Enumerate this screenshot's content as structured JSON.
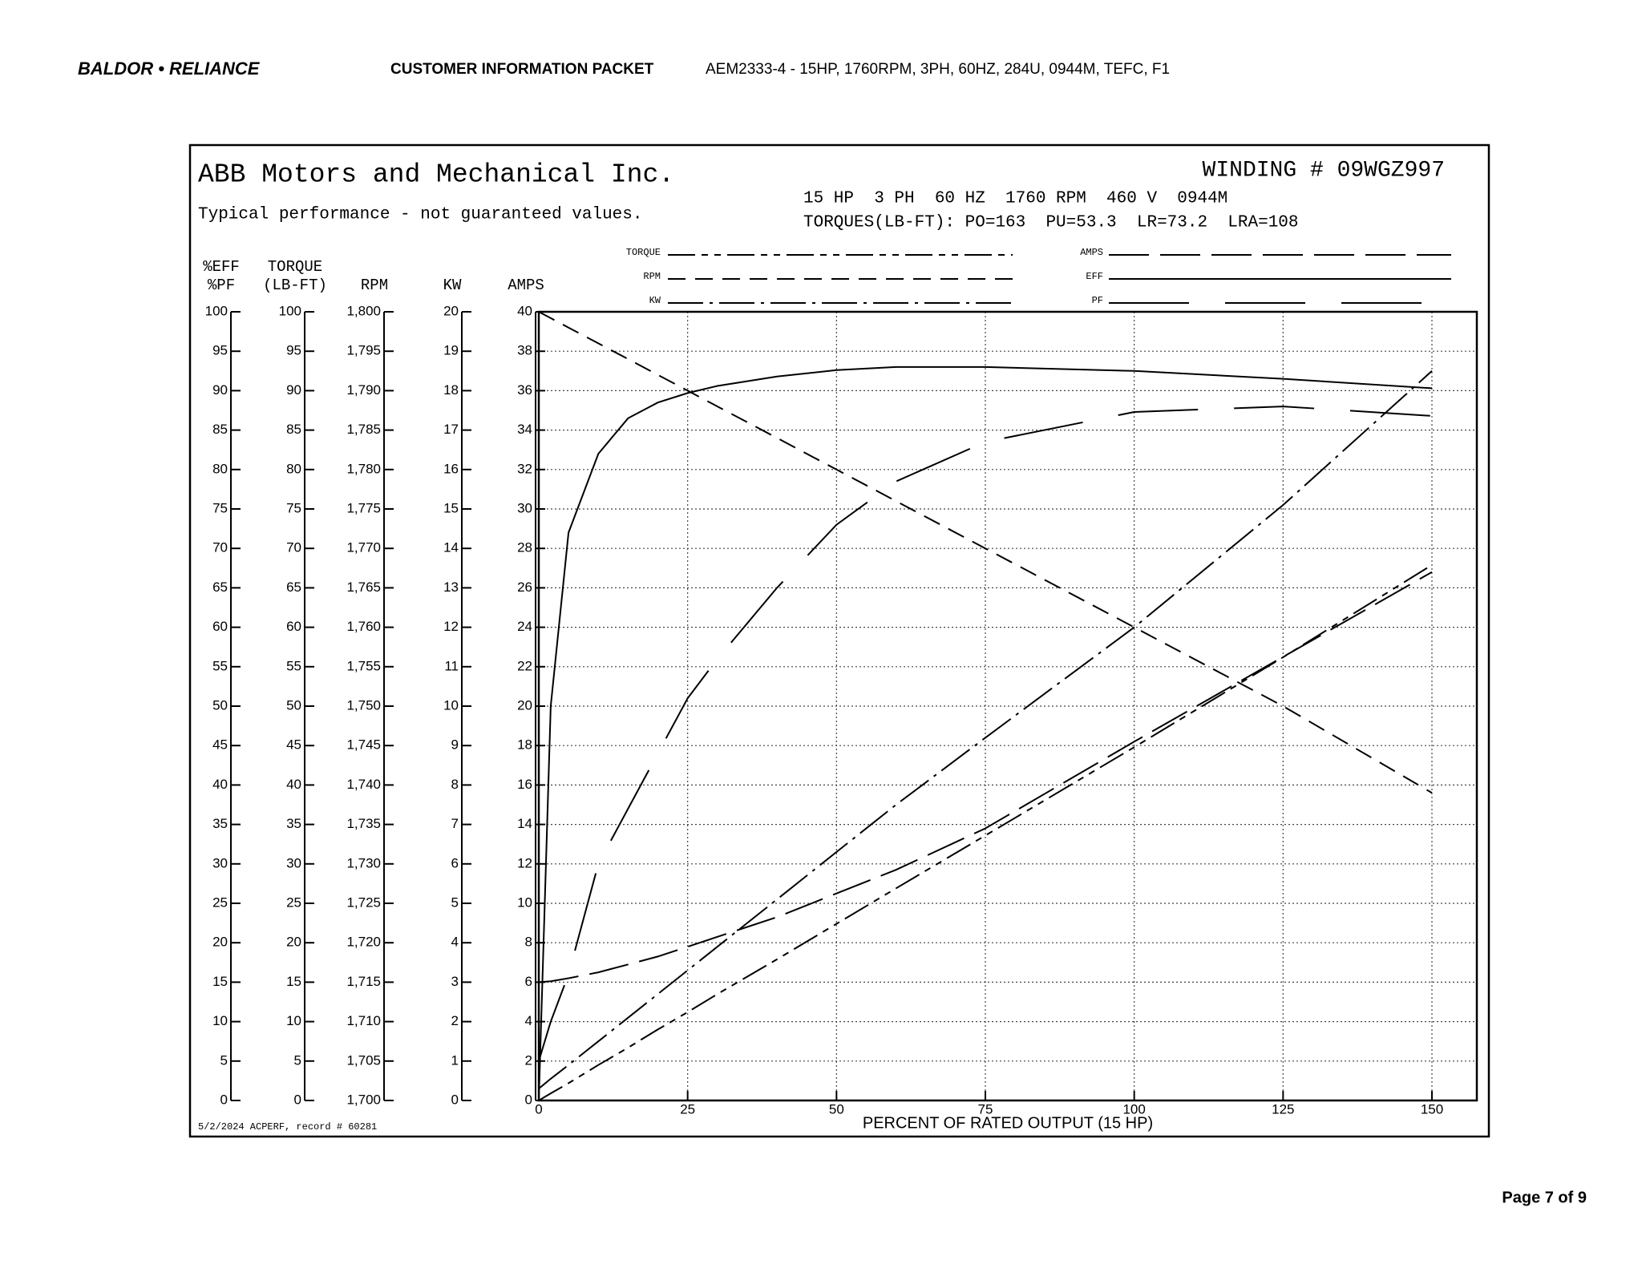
{
  "header": {
    "brand": "BALDOR • RELIANCE",
    "packet": "CUSTOMER INFORMATION PACKET",
    "description": "AEM2333-4 - 15HP, 1760RPM, 3PH, 60HZ, 284U, 0944M, TEFC, F1"
  },
  "footer": {
    "page": "Page 7 of 9"
  },
  "chart_data": {
    "type": "line",
    "title": "ABB Motors and Mechanical Inc.",
    "subtitle": "Typical performance - not guaranteed values.",
    "winding": "WINDING # 09WGZ997",
    "specs": "15 HP  3 PH  60 HZ  1760 RPM  460 V  0944M",
    "torques": "TORQUES(LB-FT): PO=163  PU=53.3  LR=73.2  LRA=108",
    "footnote": "5/2/2024 ACPERF, record # 60281",
    "xlabel": "PERCENT OF RATED OUTPUT (15 HP)",
    "xlim": [
      0,
      150
    ],
    "xticks": [
      0,
      25,
      50,
      75,
      100,
      125,
      150
    ],
    "grid": true,
    "x": [
      0,
      2,
      5,
      10,
      15,
      20,
      25,
      30,
      40,
      50,
      60,
      75,
      100,
      125,
      150
    ],
    "axes": [
      {
        "title": [
          "%EFF",
          "%PF"
        ],
        "ylim": [
          0,
          100
        ],
        "yticks": [
          0,
          5,
          10,
          15,
          20,
          25,
          30,
          35,
          40,
          45,
          50,
          55,
          60,
          65,
          70,
          75,
          80,
          85,
          90,
          95,
          100
        ]
      },
      {
        "title": [
          "TORQUE",
          "(LB-FT)"
        ],
        "ylim": [
          0,
          100
        ],
        "yticks": [
          0,
          5,
          10,
          15,
          20,
          25,
          30,
          35,
          40,
          45,
          50,
          55,
          60,
          65,
          70,
          75,
          80,
          85,
          90,
          95,
          100
        ]
      },
      {
        "title": [
          "RPM"
        ],
        "ylim": [
          1700,
          1800
        ],
        "yticks": [
          {
            "value": 1700,
            "label": "1,700"
          },
          {
            "value": 1705,
            "label": "1,705"
          },
          {
            "value": 1710,
            "label": "1,710"
          },
          {
            "value": 1715,
            "label": "1,715"
          },
          {
            "value": 1720,
            "label": "1,720"
          },
          {
            "value": 1725,
            "label": "1,725"
          },
          {
            "value": 1730,
            "label": "1,730"
          },
          {
            "value": 1735,
            "label": "1,735"
          },
          {
            "value": 1740,
            "label": "1,740"
          },
          {
            "value": 1745,
            "label": "1,745"
          },
          {
            "value": 1750,
            "label": "1,750"
          },
          {
            "value": 1755,
            "label": "1,755"
          },
          {
            "value": 1760,
            "label": "1,760"
          },
          {
            "value": 1765,
            "label": "1,765"
          },
          {
            "value": 1770,
            "label": "1,770"
          },
          {
            "value": 1775,
            "label": "1,775"
          },
          {
            "value": 1780,
            "label": "1,780"
          },
          {
            "value": 1785,
            "label": "1,785"
          },
          {
            "value": 1790,
            "label": "1,790"
          },
          {
            "value": 1795,
            "label": "1,795"
          },
          {
            "value": 1800,
            "label": "1,800"
          }
        ]
      },
      {
        "title": [
          "KW"
        ],
        "ylim": [
          0,
          20
        ],
        "yticks": [
          0,
          1,
          2,
          3,
          4,
          5,
          6,
          7,
          8,
          9,
          10,
          11,
          12,
          13,
          14,
          15,
          16,
          17,
          18,
          19,
          20
        ]
      },
      {
        "title": [
          "AMPS"
        ],
        "ylim": [
          0,
          40
        ],
        "yticks": [
          0,
          2,
          4,
          6,
          8,
          10,
          12,
          14,
          16,
          18,
          20,
          22,
          24,
          26,
          28,
          30,
          32,
          34,
          36,
          38,
          40
        ]
      }
    ],
    "series": [
      {
        "name": "TORQUE",
        "color": "#000000",
        "axis": 1,
        "values": [
          0,
          0.9,
          2.2,
          4.5,
          6.7,
          9,
          11.2,
          13.5,
          17.9,
          22.4,
          26.9,
          33.6,
          44.8,
          56.2,
          67.9
        ]
      },
      {
        "name": "RPM",
        "color": "#000000",
        "axis": 2,
        "values": [
          1800,
          1799.2,
          1798,
          1796,
          1794,
          1792,
          1790,
          1788,
          1784,
          1780,
          1776,
          1770,
          1760,
          1750,
          1739
        ]
      },
      {
        "name": "KW",
        "color": "#000000",
        "axis": 3,
        "values": [
          0.3,
          0.55,
          0.9,
          1.5,
          2.1,
          2.7,
          3.3,
          3.9,
          5.1,
          6.3,
          7.5,
          9.2,
          12.0,
          15.1,
          18.5
        ]
      },
      {
        "name": "AMPS",
        "color": "#000000",
        "axis": 4,
        "values": [
          6,
          6.05,
          6.2,
          6.5,
          6.9,
          7.3,
          7.8,
          8.3,
          9.3,
          10.5,
          11.7,
          13.8,
          18.2,
          22.5,
          26.8
        ]
      },
      {
        "name": "EFF",
        "color": "#000000",
        "axis": 0,
        "values": [
          0,
          50,
          72,
          82,
          86.5,
          88.5,
          89.7,
          90.6,
          91.8,
          92.6,
          93.0,
          93.0,
          92.5,
          91.5,
          90.3
        ]
      },
      {
        "name": "PF",
        "color": "#000000",
        "axis": 0,
        "values": [
          5,
          10,
          16,
          30,
          37,
          44,
          51,
          56,
          65,
          73,
          78.5,
          83.5,
          87.3,
          88,
          86.8
        ]
      }
    ]
  }
}
